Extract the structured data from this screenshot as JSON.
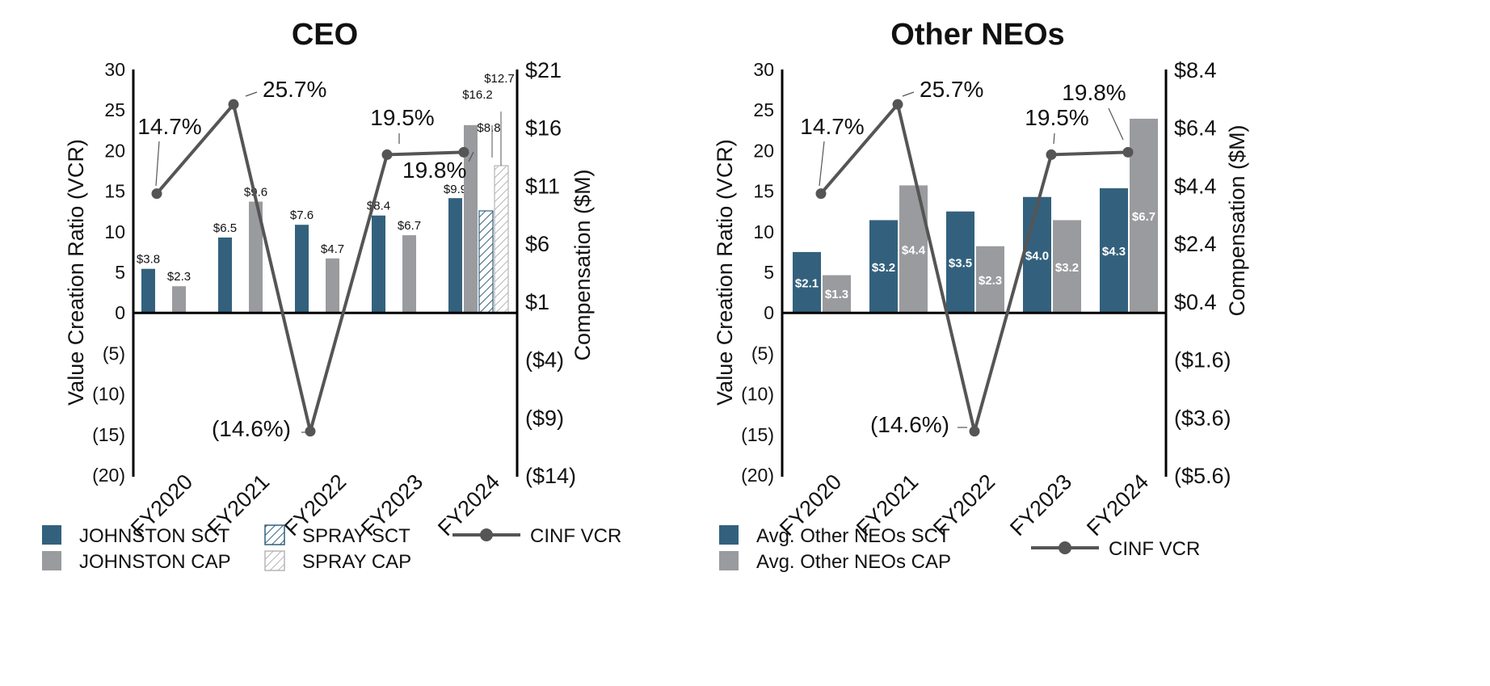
{
  "colors": {
    "sct": "#33617d",
    "cap": "#9a9b9e",
    "vcr_line": "#555555",
    "axis": "#000000"
  },
  "chart_data": [
    {
      "type": "bar",
      "title": "CEO",
      "categories": [
        "FY2020",
        "FY2021",
        "FY2022",
        "FY2023",
        "FY2024"
      ],
      "left_axis": {
        "label": "Value Creation Ratio (VCR)",
        "range": [
          -20,
          30
        ],
        "ticks": [
          "30",
          "25",
          "20",
          "15",
          "10",
          "5",
          "0",
          "(5)",
          "(10)",
          "(15)",
          "(20)"
        ]
      },
      "right_axis": {
        "label": "Compensation ($M)",
        "range": [
          -14,
          21
        ],
        "ticks": [
          "$21",
          "$16",
          "$11",
          "$6",
          "$1",
          "($4)",
          "($9)",
          "($14)"
        ]
      },
      "series": [
        {
          "name": "JOHNSTON SCT",
          "kind": "solid-sct",
          "values": [
            3.8,
            6.5,
            7.6,
            8.4,
            9.9
          ],
          "labels": [
            "$3.8",
            "$6.5",
            "$7.6",
            "$8.4",
            "$9.9"
          ]
        },
        {
          "name": "JOHNSTON CAP",
          "kind": "solid-cap",
          "values": [
            2.3,
            9.6,
            4.7,
            6.7,
            16.2
          ],
          "labels": [
            "$2.3",
            "$9.6",
            "$4.7",
            "$6.7",
            "$16.2"
          ]
        },
        {
          "name": "SPRAY SCT",
          "kind": "hatch-sct",
          "values": [
            null,
            null,
            null,
            null,
            8.8
          ],
          "labels": [
            "",
            "",
            "",
            "",
            "$8.8"
          ]
        },
        {
          "name": "SPRAY CAP",
          "kind": "hatch-cap",
          "values": [
            null,
            null,
            null,
            null,
            12.7
          ],
          "labels": [
            "",
            "",
            "",
            "",
            "$12.7"
          ]
        }
      ],
      "vcr": {
        "name": "CINF VCR",
        "values": [
          14.7,
          25.7,
          -14.6,
          19.5,
          19.8
        ],
        "labels": [
          "14.7%",
          "25.7%",
          "(14.6%)",
          "19.5%",
          "19.8%"
        ]
      },
      "legend": [
        {
          "label": "JOHNSTON SCT",
          "kind": "solid-sct"
        },
        {
          "label": "SPRAY SCT",
          "kind": "hatch-sct"
        },
        {
          "label": "CINF VCR",
          "kind": "line"
        },
        {
          "label": "JOHNSTON CAP",
          "kind": "solid-cap"
        },
        {
          "label": "SPRAY CAP",
          "kind": "hatch-cap"
        }
      ]
    },
    {
      "type": "bar",
      "title": "Other NEOs",
      "categories": [
        "FY2020",
        "FY2021",
        "FY2022",
        "FY2023",
        "FY2024"
      ],
      "left_axis": {
        "label": "Value Creation Ratio (VCR)",
        "range": [
          -20,
          30
        ],
        "ticks": [
          "30",
          "25",
          "20",
          "15",
          "10",
          "5",
          "0",
          "(5)",
          "(10)",
          "(15)",
          "(20)"
        ]
      },
      "right_axis": {
        "label": "Compensation ($M)",
        "range": [
          -5.6,
          8.4
        ],
        "ticks": [
          "$8.4",
          "$6.4",
          "$4.4",
          "$2.4",
          "$0.4",
          "($1.6)",
          "($3.6)",
          "($5.6)"
        ]
      },
      "series": [
        {
          "name": "Avg. Other NEOs SCT",
          "kind": "solid-sct",
          "values": [
            2.1,
            3.2,
            3.5,
            4.0,
            4.3
          ],
          "labels": [
            "$2.1",
            "$3.2",
            "$3.5",
            "$4.0",
            "$4.3"
          ]
        },
        {
          "name": "Avg. Other NEOs CAP",
          "kind": "solid-cap",
          "values": [
            1.3,
            4.4,
            2.3,
            3.2,
            6.7
          ],
          "labels": [
            "$1.3",
            "$4.4",
            "$2.3",
            "$3.2",
            "$6.7"
          ]
        }
      ],
      "vcr": {
        "name": "CINF VCR",
        "values": [
          14.7,
          25.7,
          -14.6,
          19.5,
          19.8
        ],
        "labels": [
          "14.7%",
          "25.7%",
          "(14.6%)",
          "19.5%",
          "19.8%"
        ]
      },
      "legend": [
        {
          "label": "Avg. Other NEOs SCT",
          "kind": "solid-sct"
        },
        {
          "label": "Avg. Other NEOs CAP",
          "kind": "solid-cap"
        },
        {
          "label": "CINF VCR",
          "kind": "line"
        }
      ]
    }
  ]
}
